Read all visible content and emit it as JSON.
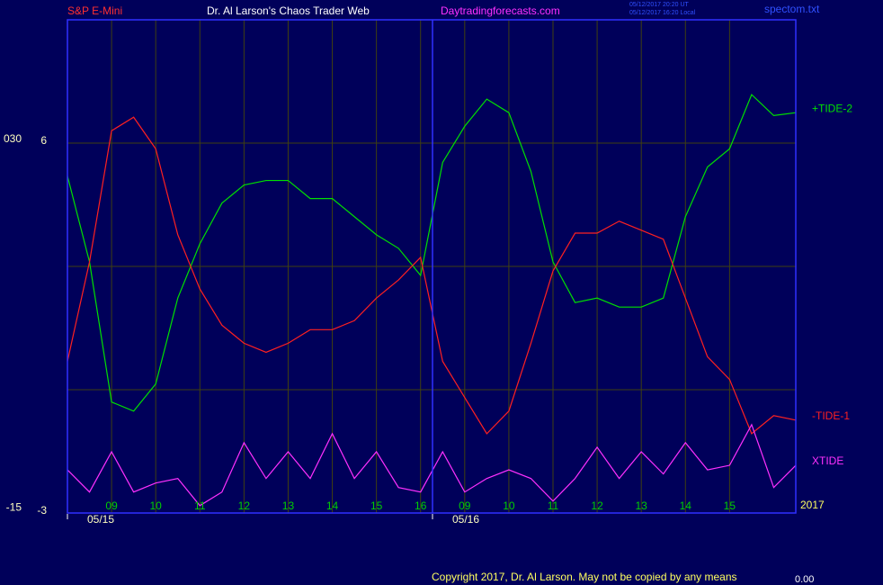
{
  "header": {
    "symbol": "S&P E-Mini",
    "site": "Dr. Al Larson's Chaos Trader Web",
    "url": "Daytradingforecasts.com",
    "timestamps": [
      "05/12/2017 20:20 UT",
      "05/12/2017 16:20 Local"
    ],
    "file": "spectom.txt"
  },
  "chart_data": {
    "type": "line",
    "categories": [
      null,
      null,
      "09",
      null,
      "10",
      null,
      "11",
      null,
      "12",
      null,
      "13",
      null,
      "14",
      null,
      "15",
      null,
      "16",
      null,
      "09",
      null,
      "10",
      null,
      "11",
      null,
      "12",
      null,
      "13",
      null,
      "14",
      null,
      "15",
      null,
      null,
      null
    ],
    "day_labels": [
      "05/15",
      "05/16"
    ],
    "series": [
      {
        "name": "+TIDE-2",
        "color": "#00e000",
        "values": [
          5.2,
          3.11,
          -0.3,
          -0.52,
          0.14,
          2.23,
          3.55,
          4.54,
          4.98,
          5.09,
          5.09,
          4.65,
          4.65,
          4.21,
          3.77,
          3.44,
          2.78,
          5.53,
          6.41,
          7.07,
          6.74,
          5.31,
          3.11,
          2.12,
          2.23,
          2.01,
          2.01,
          2.23,
          4.21,
          5.42,
          5.86,
          7.18,
          6.67,
          6.74
        ]
      },
      {
        "name": "-TIDE-1",
        "color": "#ff2020",
        "values": [
          0.69,
          3.11,
          6.3,
          6.63,
          5.86,
          3.77,
          2.45,
          1.57,
          1.13,
          0.91,
          1.13,
          1.46,
          1.46,
          1.68,
          2.23,
          2.67,
          3.22,
          0.69,
          -0.19,
          -1.07,
          -0.52,
          1.13,
          2.89,
          3.81,
          3.81,
          4.1,
          3.88,
          3.66,
          2.23,
          0.8,
          0.25,
          -1.07,
          -0.63,
          -0.74
        ]
      },
      {
        "name": "XTIDE",
        "color": "#ff30ff",
        "values": [
          -1.95,
          -2.49,
          -1.51,
          -2.49,
          -2.27,
          -2.16,
          -2.82,
          -2.49,
          -1.29,
          -2.16,
          -1.51,
          -2.16,
          -1.07,
          -2.16,
          -1.51,
          -2.38,
          -2.49,
          -1.51,
          -2.49,
          -2.16,
          -1.95,
          -2.16,
          -2.71,
          -2.16,
          -1.4,
          -2.16,
          -1.51,
          -2.05,
          -1.29,
          -1.95,
          -1.84,
          -0.85,
          -2.38,
          -1.84
        ]
      }
    ],
    "ylim": [
      -3,
      9
    ],
    "yticks": [
      -3,
      6
    ],
    "ygrid": [
      0,
      3,
      6
    ],
    "y2lim": [
      -15.4,
      44.8
    ],
    "y2ticks": [
      {
        "value": 30,
        "label": "030"
      },
      -15
    ],
    "year": "2017"
  },
  "footer": {
    "copyright": "Copyright 2017, Dr. Al Larson. May not be copied by any means",
    "value": "0.00"
  }
}
